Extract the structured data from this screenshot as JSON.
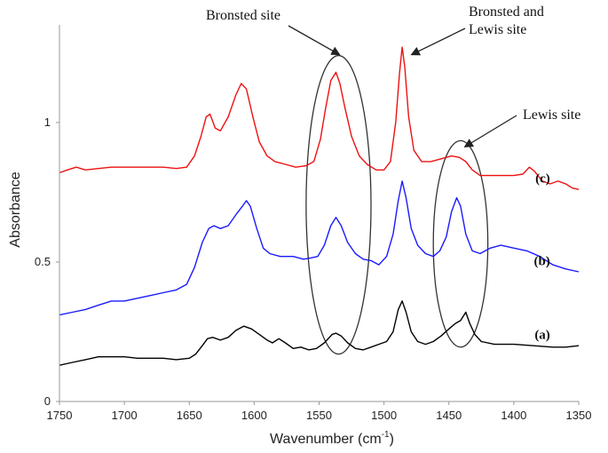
{
  "chart_data": {
    "type": "line",
    "xlabel": "Wavenumber (cm",
    "xlabel_sup": "-1",
    "xlabel_end": ")",
    "ylabel": "Absorbance",
    "xlim": [
      1750,
      1350
    ],
    "ylim": [
      0,
      1.35
    ],
    "x_ticks": [
      "1750",
      "1700",
      "1650",
      "1600",
      "1550",
      "1500",
      "1450",
      "1400",
      "1350"
    ],
    "y_ticks": [
      "0",
      "0.5",
      "1"
    ],
    "grid": false,
    "series": [
      {
        "name": "(a)",
        "color": "#000000",
        "points": [
          [
            1750,
            0.13
          ],
          [
            1740,
            0.14
          ],
          [
            1730,
            0.15
          ],
          [
            1720,
            0.16
          ],
          [
            1710,
            0.16
          ],
          [
            1700,
            0.16
          ],
          [
            1690,
            0.155
          ],
          [
            1680,
            0.155
          ],
          [
            1670,
            0.155
          ],
          [
            1660,
            0.15
          ],
          [
            1650,
            0.155
          ],
          [
            1645,
            0.17
          ],
          [
            1640,
            0.2
          ],
          [
            1636,
            0.225
          ],
          [
            1632,
            0.23
          ],
          [
            1626,
            0.22
          ],
          [
            1620,
            0.23
          ],
          [
            1614,
            0.255
          ],
          [
            1608,
            0.27
          ],
          [
            1602,
            0.26
          ],
          [
            1596,
            0.24
          ],
          [
            1590,
            0.22
          ],
          [
            1586,
            0.21
          ],
          [
            1581,
            0.225
          ],
          [
            1576,
            0.21
          ],
          [
            1570,
            0.19
          ],
          [
            1564,
            0.195
          ],
          [
            1558,
            0.185
          ],
          [
            1552,
            0.19
          ],
          [
            1546,
            0.21
          ],
          [
            1540,
            0.24
          ],
          [
            1537,
            0.245
          ],
          [
            1533,
            0.235
          ],
          [
            1528,
            0.21
          ],
          [
            1522,
            0.19
          ],
          [
            1516,
            0.185
          ],
          [
            1510,
            0.195
          ],
          [
            1504,
            0.205
          ],
          [
            1498,
            0.215
          ],
          [
            1493,
            0.25
          ],
          [
            1489,
            0.33
          ],
          [
            1486,
            0.36
          ],
          [
            1483,
            0.32
          ],
          [
            1479,
            0.25
          ],
          [
            1474,
            0.215
          ],
          [
            1468,
            0.205
          ],
          [
            1462,
            0.215
          ],
          [
            1456,
            0.235
          ],
          [
            1450,
            0.26
          ],
          [
            1445,
            0.28
          ],
          [
            1441,
            0.29
          ],
          [
            1437,
            0.32
          ],
          [
            1434,
            0.28
          ],
          [
            1430,
            0.24
          ],
          [
            1425,
            0.215
          ],
          [
            1415,
            0.205
          ],
          [
            1400,
            0.205
          ],
          [
            1385,
            0.2
          ],
          [
            1370,
            0.195
          ],
          [
            1360,
            0.195
          ],
          [
            1350,
            0.2
          ]
        ]
      },
      {
        "name": "(b)",
        "color": "#1a1aff",
        "points": [
          [
            1750,
            0.31
          ],
          [
            1740,
            0.32
          ],
          [
            1730,
            0.33
          ],
          [
            1720,
            0.345
          ],
          [
            1710,
            0.36
          ],
          [
            1700,
            0.36
          ],
          [
            1690,
            0.37
          ],
          [
            1680,
            0.38
          ],
          [
            1670,
            0.39
          ],
          [
            1660,
            0.4
          ],
          [
            1652,
            0.42
          ],
          [
            1646,
            0.48
          ],
          [
            1640,
            0.57
          ],
          [
            1635,
            0.62
          ],
          [
            1631,
            0.63
          ],
          [
            1626,
            0.62
          ],
          [
            1620,
            0.63
          ],
          [
            1614,
            0.67
          ],
          [
            1609,
            0.7
          ],
          [
            1606,
            0.72
          ],
          [
            1603,
            0.7
          ],
          [
            1598,
            0.62
          ],
          [
            1593,
            0.55
          ],
          [
            1588,
            0.53
          ],
          [
            1580,
            0.52
          ],
          [
            1570,
            0.52
          ],
          [
            1562,
            0.51
          ],
          [
            1556,
            0.515
          ],
          [
            1551,
            0.52
          ],
          [
            1546,
            0.56
          ],
          [
            1541,
            0.63
          ],
          [
            1537,
            0.66
          ],
          [
            1533,
            0.63
          ],
          [
            1528,
            0.57
          ],
          [
            1522,
            0.53
          ],
          [
            1516,
            0.51
          ],
          [
            1510,
            0.505
          ],
          [
            1504,
            0.49
          ],
          [
            1498,
            0.52
          ],
          [
            1493,
            0.6
          ],
          [
            1489,
            0.72
          ],
          [
            1486,
            0.79
          ],
          [
            1483,
            0.73
          ],
          [
            1479,
            0.62
          ],
          [
            1474,
            0.56
          ],
          [
            1468,
            0.53
          ],
          [
            1462,
            0.52
          ],
          [
            1457,
            0.54
          ],
          [
            1452,
            0.59
          ],
          [
            1448,
            0.68
          ],
          [
            1444,
            0.73
          ],
          [
            1441,
            0.7
          ],
          [
            1437,
            0.6
          ],
          [
            1432,
            0.54
          ],
          [
            1426,
            0.53
          ],
          [
            1418,
            0.55
          ],
          [
            1410,
            0.56
          ],
          [
            1400,
            0.55
          ],
          [
            1390,
            0.54
          ],
          [
            1380,
            0.52
          ],
          [
            1370,
            0.49
          ],
          [
            1360,
            0.475
          ],
          [
            1350,
            0.465
          ]
        ]
      },
      {
        "name": "(c)",
        "color": "#ee1111",
        "points": [
          [
            1750,
            0.82
          ],
          [
            1744,
            0.83
          ],
          [
            1737,
            0.84
          ],
          [
            1730,
            0.83
          ],
          [
            1720,
            0.835
          ],
          [
            1710,
            0.84
          ],
          [
            1700,
            0.84
          ],
          [
            1690,
            0.84
          ],
          [
            1680,
            0.84
          ],
          [
            1670,
            0.84
          ],
          [
            1660,
            0.835
          ],
          [
            1652,
            0.84
          ],
          [
            1646,
            0.88
          ],
          [
            1641,
            0.95
          ],
          [
            1637,
            1.02
          ],
          [
            1634,
            1.03
          ],
          [
            1630,
            0.98
          ],
          [
            1626,
            0.97
          ],
          [
            1620,
            1.02
          ],
          [
            1614,
            1.1
          ],
          [
            1610,
            1.14
          ],
          [
            1606,
            1.12
          ],
          [
            1601,
            1.02
          ],
          [
            1596,
            0.93
          ],
          [
            1590,
            0.88
          ],
          [
            1584,
            0.86
          ],
          [
            1576,
            0.85
          ],
          [
            1568,
            0.84
          ],
          [
            1560,
            0.845
          ],
          [
            1554,
            0.86
          ],
          [
            1549,
            0.94
          ],
          [
            1545,
            1.05
          ],
          [
            1541,
            1.15
          ],
          [
            1537,
            1.18
          ],
          [
            1534,
            1.14
          ],
          [
            1530,
            1.05
          ],
          [
            1525,
            0.95
          ],
          [
            1519,
            0.88
          ],
          [
            1513,
            0.85
          ],
          [
            1506,
            0.83
          ],
          [
            1500,
            0.83
          ],
          [
            1495,
            0.86
          ],
          [
            1491,
            1.0
          ],
          [
            1488,
            1.18
          ],
          [
            1486,
            1.27
          ],
          [
            1484,
            1.2
          ],
          [
            1481,
            1.02
          ],
          [
            1477,
            0.9
          ],
          [
            1471,
            0.86
          ],
          [
            1464,
            0.86
          ],
          [
            1456,
            0.87
          ],
          [
            1448,
            0.88
          ],
          [
            1442,
            0.875
          ],
          [
            1437,
            0.86
          ],
          [
            1432,
            0.83
          ],
          [
            1426,
            0.81
          ],
          [
            1415,
            0.81
          ],
          [
            1400,
            0.81
          ],
          [
            1393,
            0.815
          ],
          [
            1388,
            0.84
          ],
          [
            1384,
            0.825
          ],
          [
            1378,
            0.79
          ],
          [
            1372,
            0.78
          ],
          [
            1366,
            0.79
          ],
          [
            1360,
            0.78
          ],
          [
            1355,
            0.765
          ],
          [
            1350,
            0.76
          ]
        ]
      }
    ],
    "annotations": [
      {
        "lines": [
          "Bronsted site"
        ],
        "arrow_from": [
          1545,
          1.31
        ],
        "arrow_to": [
          1535,
          1.245
        ]
      },
      {
        "lines": [
          "Bronsted and",
          "Lewis site"
        ],
        "arrow_from": [
          1450,
          1.29
        ],
        "arrow_to": [
          1478,
          1.245
        ]
      },
      {
        "lines": [
          "Lewis site"
        ],
        "arrow_from": [
          1407,
          0.94
        ],
        "arrow_to": [
          1437,
          0.915
        ]
      }
    ],
    "highlight_regions": [
      {
        "cx": 1535,
        "cy": 0.705,
        "rx": 25,
        "ry": 0.535
      },
      {
        "cx": 1441,
        "cy": 0.565,
        "rx": 21,
        "ry": 0.37
      }
    ]
  }
}
